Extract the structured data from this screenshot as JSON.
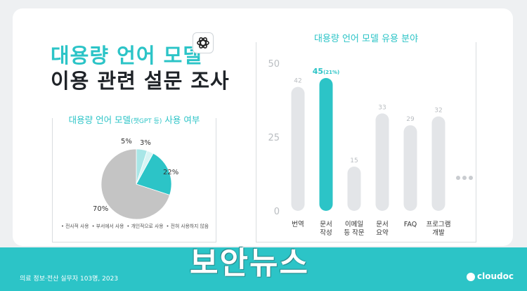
{
  "header": {
    "title_line1": "대용량 언어 모델",
    "title_line2": "이용 관련 설문 조사"
  },
  "footer": {
    "source": "의료 정보·전산 실무자 103명, 2023",
    "brand": "cloudoc",
    "watermark": "보안뉴스"
  },
  "colors": {
    "accent": "#2cc4c7",
    "gray": "#c4c4c4",
    "bar_gray": "#e3e5e8"
  },
  "icons": {
    "logo": "openai-logo-icon",
    "more": "ellipsis-icon"
  },
  "chart_data": [
    {
      "type": "pie",
      "title": "대용량 언어 모델",
      "title_paren": "(챗GPT 등)",
      "title_suffix": "사용 여부",
      "labels": [
        "전사적 사용",
        "부서에서 사용",
        "개인적으로 사용",
        "전혀 사용하지 않음"
      ],
      "values": [
        5,
        3,
        22,
        70
      ],
      "value_labels": [
        "5%",
        "3%",
        "22%",
        "70%"
      ],
      "legend": "bottom",
      "colors": [
        "#a8e6e7",
        "#d8f4f4",
        "#2cc4c7",
        "#c4c4c4"
      ]
    },
    {
      "type": "bar",
      "title": "대용량 언어 모델 유용 분야",
      "categories": [
        [
          "번역"
        ],
        [
          "문서",
          "작성"
        ],
        [
          "이메일",
          "등 작문"
        ],
        [
          "문서",
          "요약"
        ],
        [
          "FAQ"
        ],
        [
          "프로그램",
          "개발"
        ]
      ],
      "values": [
        42,
        45,
        15,
        33,
        29,
        32
      ],
      "value_labels": [
        "42",
        "45",
        "15",
        "33",
        "29",
        "32"
      ],
      "highlight_suffix": "(21%)",
      "highlight_index": 1,
      "ylim": [
        0,
        50
      ],
      "yticks": [
        "0",
        "25",
        "50"
      ],
      "grid": false
    }
  ]
}
